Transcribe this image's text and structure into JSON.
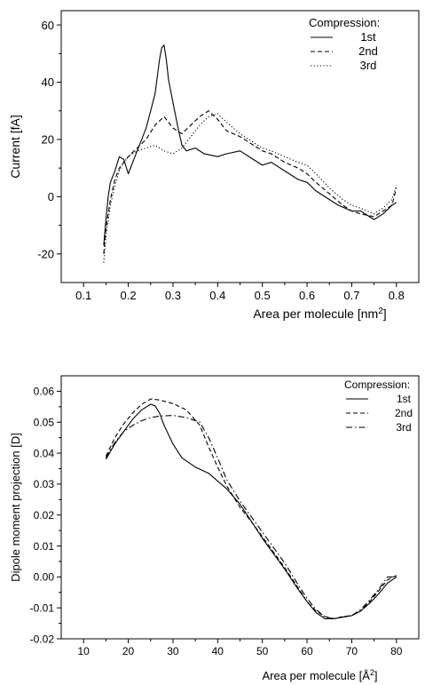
{
  "chart_data": [
    {
      "type": "line",
      "xlabel": "Area per molecule [nm",
      "xlabel_sup": "2",
      "xlabel_end": "]",
      "ylabel": "Current [fA]",
      "xlim": [
        0.05,
        0.85
      ],
      "ylim": [
        -30,
        65
      ],
      "xticks": [
        "0.1",
        "0.2",
        "0.3",
        "0.4",
        "0.5",
        "0.6",
        "0.7",
        "0.8"
      ],
      "yticks": [
        "-20",
        "0",
        "20",
        "40",
        "60"
      ],
      "legend_title": "Compression:",
      "legend_position": "top-right",
      "series": [
        {
          "name": "1st",
          "style": "solid",
          "x": [
            0.145,
            0.15,
            0.155,
            0.16,
            0.17,
            0.18,
            0.19,
            0.2,
            0.21,
            0.22,
            0.23,
            0.24,
            0.25,
            0.26,
            0.265,
            0.27,
            0.275,
            0.28,
            0.285,
            0.29,
            0.3,
            0.31,
            0.32,
            0.33,
            0.35,
            0.37,
            0.4,
            0.42,
            0.45,
            0.48,
            0.5,
            0.52,
            0.55,
            0.58,
            0.6,
            0.62,
            0.65,
            0.67,
            0.7,
            0.72,
            0.75,
            0.77,
            0.79,
            0.8
          ],
          "y": [
            -17,
            -8,
            0,
            5,
            9,
            14,
            13,
            8,
            12,
            16,
            20,
            24,
            30,
            36,
            42,
            48,
            52,
            53,
            48,
            41,
            33,
            25,
            18,
            16,
            17,
            15,
            14,
            15,
            16,
            13,
            11,
            12,
            9,
            6,
            5,
            2,
            -1,
            -3,
            -5,
            -5,
            -8,
            -6,
            -3,
            -2
          ]
        },
        {
          "name": "2nd",
          "style": "dashed",
          "x": [
            0.145,
            0.15,
            0.16,
            0.17,
            0.18,
            0.19,
            0.2,
            0.22,
            0.24,
            0.26,
            0.28,
            0.3,
            0.32,
            0.34,
            0.36,
            0.38,
            0.4,
            0.42,
            0.45,
            0.48,
            0.5,
            0.52,
            0.55,
            0.58,
            0.6,
            0.62,
            0.65,
            0.68,
            0.7,
            0.72,
            0.75,
            0.77,
            0.79,
            0.8
          ],
          "y": [
            -20,
            -11,
            -1,
            6,
            10,
            12,
            14,
            17,
            20,
            25,
            28,
            24,
            22,
            25,
            28,
            30,
            27,
            23,
            21,
            18,
            16,
            15,
            12,
            10,
            8,
            5,
            1,
            -3,
            -5,
            -6,
            -7,
            -5,
            -3,
            3
          ]
        },
        {
          "name": "3rd",
          "style": "dotted",
          "x": [
            0.145,
            0.15,
            0.16,
            0.17,
            0.18,
            0.19,
            0.2,
            0.22,
            0.24,
            0.26,
            0.28,
            0.3,
            0.32,
            0.34,
            0.36,
            0.38,
            0.4,
            0.42,
            0.45,
            0.48,
            0.5,
            0.52,
            0.55,
            0.58,
            0.6,
            0.62,
            0.65,
            0.68,
            0.7,
            0.72,
            0.75,
            0.77,
            0.79,
            0.8
          ],
          "y": [
            -23,
            -14,
            -3,
            4,
            9,
            12,
            14,
            16,
            17,
            18,
            16,
            15,
            17,
            21,
            25,
            28,
            29,
            26,
            22,
            19,
            17,
            16,
            14,
            12,
            11,
            8,
            3,
            -1,
            -3,
            -4,
            -6,
            -4,
            -1,
            4
          ]
        }
      ]
    },
    {
      "type": "line",
      "xlabel": "Area per molecule [Å",
      "xlabel_sup": "2",
      "xlabel_end": "]",
      "ylabel": "Dipole moment projection [D]",
      "xlim": [
        5,
        85
      ],
      "ylim": [
        -0.02,
        0.065
      ],
      "xticks": [
        "10",
        "20",
        "30",
        "40",
        "50",
        "60",
        "70",
        "80"
      ],
      "yticks": [
        "-0.02",
        "-0.01",
        "0.00",
        "0.01",
        "0.02",
        "0.03",
        "0.04",
        "0.05",
        "0.06"
      ],
      "legend_title": "Compression:",
      "legend_position": "top-right",
      "series": [
        {
          "name": "1st",
          "style": "solid",
          "x": [
            15,
            17,
            19,
            21,
            23,
            25,
            26,
            27,
            28,
            30,
            32,
            35,
            38,
            40,
            42,
            45,
            48,
            50,
            52,
            55,
            58,
            60,
            62,
            64,
            66,
            68,
            70,
            72,
            74,
            76,
            78,
            80
          ],
          "y": [
            0.038,
            0.043,
            0.047,
            0.051,
            0.054,
            0.0558,
            0.0553,
            0.053,
            0.049,
            0.043,
            0.0385,
            0.0355,
            0.0335,
            0.031,
            0.0285,
            0.0235,
            0.017,
            0.0125,
            0.0085,
            0.0025,
            -0.004,
            -0.008,
            -0.0115,
            -0.0135,
            -0.0135,
            -0.013,
            -0.0125,
            -0.011,
            -0.0085,
            -0.0055,
            -0.002,
            0.0
          ]
        },
        {
          "name": "2nd",
          "style": "dashed",
          "x": [
            15,
            17,
            19,
            21,
            23,
            25,
            27,
            30,
            33,
            36,
            38,
            40,
            42,
            45,
            48,
            50,
            52,
            55,
            58,
            60,
            62,
            64,
            66,
            68,
            70,
            72,
            74,
            76,
            78,
            80
          ],
          "y": [
            0.039,
            0.045,
            0.0495,
            0.053,
            0.0558,
            0.0575,
            0.0572,
            0.056,
            0.054,
            0.049,
            0.042,
            0.0355,
            0.0295,
            0.0225,
            0.017,
            0.013,
            0.009,
            0.003,
            -0.0035,
            -0.008,
            -0.011,
            -0.0128,
            -0.0135,
            -0.0128,
            -0.0125,
            -0.011,
            -0.008,
            -0.0045,
            -0.001,
            0.0005
          ]
        },
        {
          "name": "3rd",
          "style": "dashdot",
          "x": [
            15,
            17,
            19,
            21,
            23,
            25,
            27,
            30,
            33,
            36,
            38,
            40,
            42,
            45,
            48,
            50,
            52,
            55,
            58,
            60,
            62,
            64,
            66,
            68,
            70,
            72,
            74,
            76,
            78,
            80
          ],
          "y": [
            0.0385,
            0.0435,
            0.047,
            0.049,
            0.0505,
            0.0515,
            0.052,
            0.0522,
            0.0515,
            0.05,
            0.045,
            0.0385,
            0.0315,
            0.0245,
            0.0185,
            0.0145,
            0.0105,
            0.0045,
            -0.0025,
            -0.007,
            -0.0105,
            -0.013,
            -0.0135,
            -0.013,
            -0.0125,
            -0.0105,
            -0.0075,
            -0.004,
            0.0,
            0.0
          ]
        }
      ]
    }
  ]
}
